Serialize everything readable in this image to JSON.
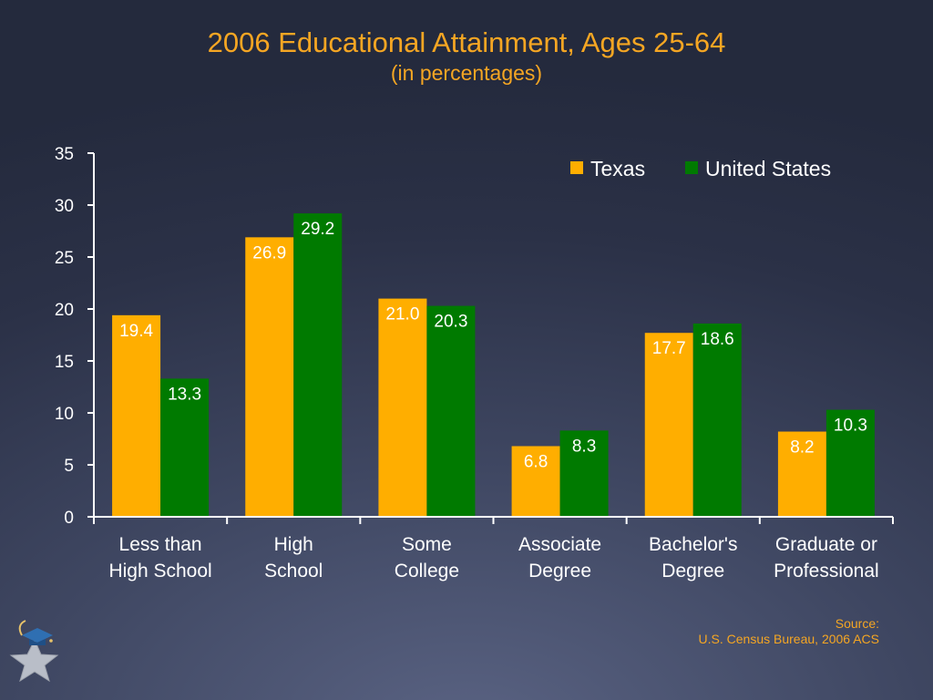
{
  "title": "2006 Educational Attainment, Ages 25-64",
  "subtitle": "(in percentages)",
  "source": {
    "label": "Source:",
    "text": "U.S. Census Bureau, 2006 ACS"
  },
  "colors": {
    "background": "#2b3147",
    "title": "#f5a623",
    "texas": "#ffae00",
    "united_states": "#007a00",
    "axis": "#ffffff",
    "text": "#ffffff"
  },
  "logo": {
    "icon": "star-with-graduation-cap-icon"
  },
  "chart_data": {
    "type": "bar",
    "categories": [
      [
        "Less than",
        "High School"
      ],
      [
        "High",
        "School"
      ],
      [
        "Some",
        "College"
      ],
      [
        "Associate",
        "Degree"
      ],
      [
        "Bachelor's",
        "Degree"
      ],
      [
        "Graduate or",
        "Professional"
      ]
    ],
    "series": [
      {
        "name": "Texas",
        "color": "#ffae00",
        "values": [
          19.4,
          26.9,
          21.0,
          6.8,
          17.7,
          8.2
        ],
        "labels": [
          "19.4",
          "26.9",
          "21.0",
          "6.8",
          "17.7",
          "8.2"
        ]
      },
      {
        "name": "United States",
        "color": "#007a00",
        "values": [
          13.3,
          29.2,
          20.3,
          8.3,
          18.6,
          10.3
        ],
        "labels": [
          "13.3",
          "29.2",
          "20.3",
          "8.3",
          "18.6",
          "10.3"
        ]
      }
    ],
    "ylim": [
      0,
      35
    ],
    "yticks": [
      "0",
      "5",
      "10",
      "15",
      "20",
      "25",
      "30",
      "35"
    ],
    "xlabel": "",
    "ylabel": "",
    "grid": false,
    "legend_position": "top-right"
  }
}
